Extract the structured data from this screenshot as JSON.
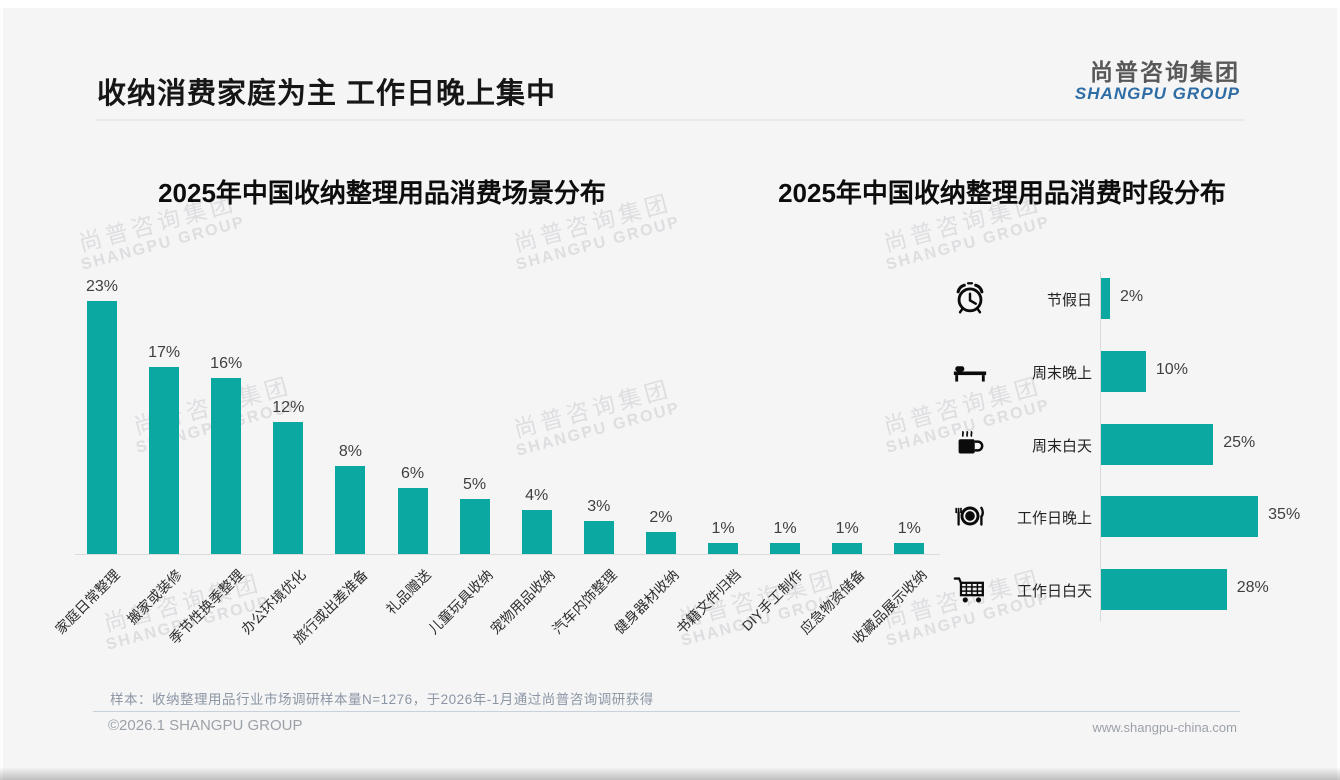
{
  "page": {
    "title": "收纳消费家庭为主 工作日晚上集中",
    "logo": {
      "cn": "尚普咨询集团",
      "en": "SHANGPU GROUP"
    },
    "watermark": {
      "cn": "尚普咨询集团",
      "en": "SHANGPU GROUP"
    },
    "footer": {
      "note": "样本：收纳整理用品行业市场调研样本量N=1276，于2026年-1月通过尚普咨询调研获得",
      "copyright": "©2026.1 SHANGPU GROUP",
      "website": "www.shangpu-china.com"
    },
    "colors": {
      "accent": "#0AA8A1",
      "logo_blue": "#2E6DA4",
      "title_text": "#161616"
    }
  },
  "chart_data": [
    {
      "type": "bar",
      "title": "2025年中国收纳整理用品消费场景分布",
      "categories": [
        "家庭日常整理",
        "搬家或装修",
        "季节性换季整理",
        "办公环境优化",
        "旅行或出差准备",
        "礼品赠送",
        "儿童玩具收纳",
        "宠物用品收纳",
        "汽车内饰整理",
        "健身器材收纳",
        "书籍文件归档",
        "DIY手工制作",
        "应急物资储备",
        "收藏品展示收纳"
      ],
      "values": [
        23,
        17,
        16,
        12,
        8,
        6,
        5,
        4,
        3,
        2,
        1,
        1,
        1,
        1
      ],
      "unit": "%",
      "bar_color": "#0AA8A1",
      "ylim": [
        0,
        25
      ],
      "grid": false,
      "value_labels": "above bars"
    },
    {
      "type": "bar-horizontal",
      "title": "2025年中国收纳整理用品消费时段分布",
      "categories": [
        "节假日",
        "周末晚上",
        "周末白天",
        "工作日晚上",
        "工作日白天"
      ],
      "values": [
        2,
        10,
        25,
        35,
        28
      ],
      "icons": [
        "alarm-clock",
        "bed",
        "coffee",
        "dining",
        "cart"
      ],
      "unit": "%",
      "bar_color": "#0AA8A1",
      "xlim": [
        0,
        40
      ],
      "grid": false,
      "value_labels": "right of bars"
    }
  ]
}
